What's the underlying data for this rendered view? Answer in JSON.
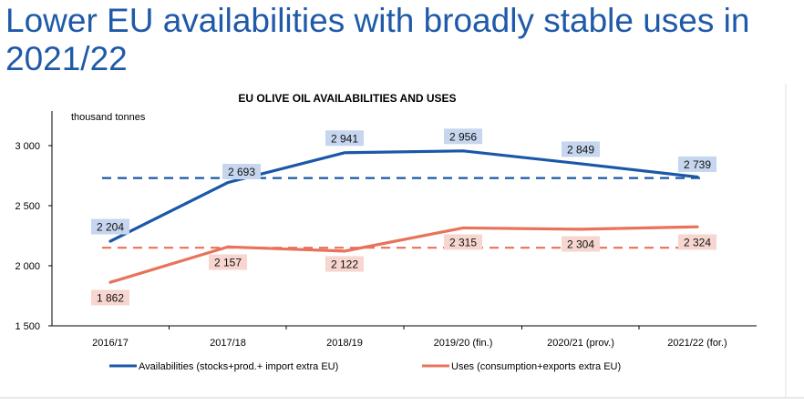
{
  "slide": {
    "title": "Lower EU availabilities with broadly stable uses in 2021/22"
  },
  "colors": {
    "availabilities": "#1a57a8",
    "uses": "#e8735a",
    "avail_label_bg": "#c6d6ee",
    "uses_label_bg": "#f6d6cf",
    "title": "#1f5aa8"
  },
  "chart_data": {
    "type": "line",
    "title": "EU OLIVE OIL AVAILABILITIES AND USES",
    "ylabel": "thousand tonnes",
    "xlabel": "",
    "categories": [
      "2016/17",
      "2017/18",
      "2018/19",
      "2019/20 (fin.)",
      "2020/21 (prov.)",
      "2021/22 (for.)"
    ],
    "ylim": [
      1500,
      3200
    ],
    "yticks": [
      1500,
      2000,
      2500,
      3000
    ],
    "ytick_labels": [
      "1 500",
      "2 000",
      "2 500",
      "3 000"
    ],
    "series": [
      {
        "name": "Availabilities (stocks+prod.+ import extra EU)",
        "values": [
          2204,
          2693,
          2941,
          2956,
          2849,
          2739
        ],
        "labels": [
          "2 204",
          "2 693",
          "2 941",
          "2 956",
          "2 849",
          "2 739"
        ],
        "average": 2730
      },
      {
        "name": "Uses (consumption+exports extra EU)",
        "values": [
          1862,
          2157,
          2122,
          2315,
          2304,
          2324
        ],
        "labels": [
          "1 862",
          "2 157",
          "2 122",
          "2 315",
          "2 304",
          "2 324"
        ],
        "average": 2150
      }
    ],
    "grid": false,
    "legend_position": "bottom"
  }
}
